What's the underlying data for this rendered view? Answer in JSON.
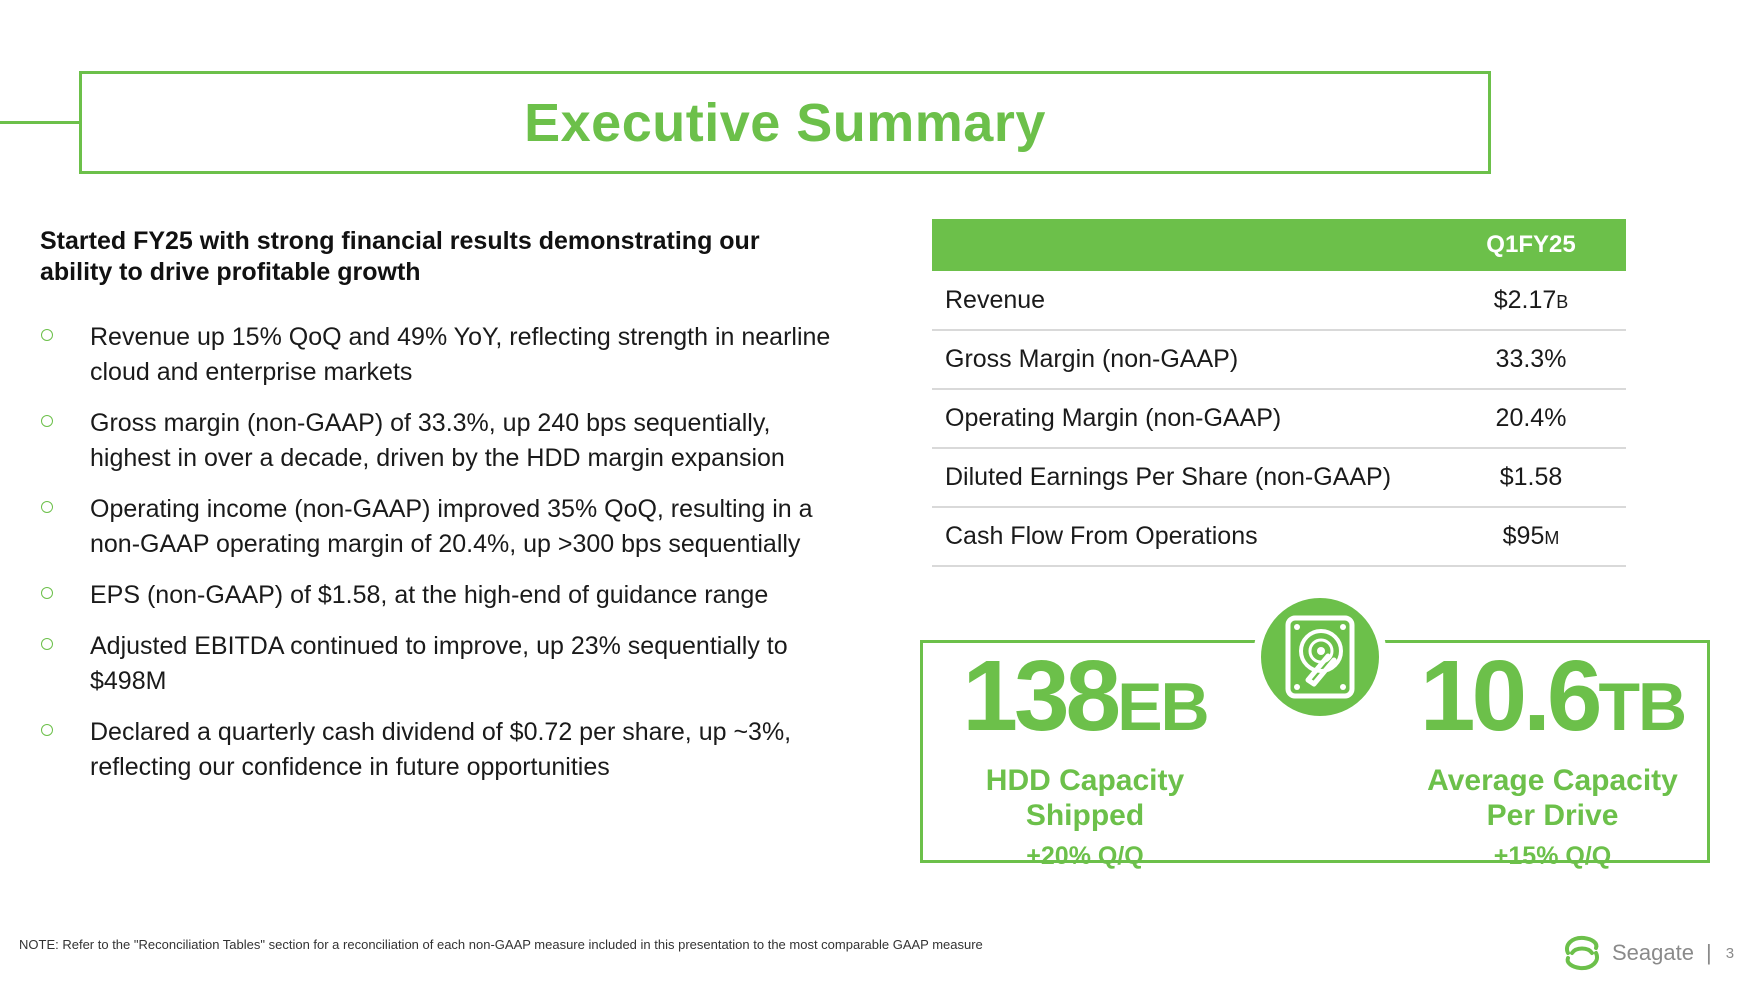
{
  "title": "Executive Summary",
  "lead": "Started FY25 with strong financial results demonstrating our ability to drive profitable growth",
  "bullets": [
    "Revenue up 15% QoQ and 49% YoY, reflecting strength in nearline cloud and enterprise markets",
    "Gross margin (non-GAAP) of 33.3%, up 240 bps sequentially, highest in over a decade, driven by the HDD margin expansion",
    "Operating income (non-GAAP) improved 35% QoQ, resulting in a non-GAAP operating margin of 20.4%, up >300 bps sequentially",
    "EPS (non-GAAP) of $1.58, at the high-end of guidance range",
    "Adjusted EBITDA continued to improve, up 23% sequentially to $498M",
    "Declared a quarterly cash dividend of $0.72 per share, up ~3%, reflecting our confidence in future opportunities"
  ],
  "table": {
    "header": "Q1FY25",
    "rows": [
      {
        "label": "Revenue",
        "value": "$2.17",
        "unit": "B"
      },
      {
        "label": "Gross Margin (non-GAAP)",
        "value": "33.3%",
        "unit": ""
      },
      {
        "label": "Operating Margin (non-GAAP)",
        "value": "20.4%",
        "unit": ""
      },
      {
        "label": "Diluted Earnings Per Share (non-GAAP)",
        "value": "$1.58",
        "unit": ""
      },
      {
        "label": "Cash Flow From Operations",
        "value": "$95",
        "unit": "M"
      }
    ]
  },
  "stats": [
    {
      "value": "138",
      "unit": "EB",
      "label_line1": "HDD Capacity",
      "label_line2": "Shipped",
      "change": "+20% Q/Q"
    },
    {
      "value": "10.6",
      "unit": "TB",
      "label_line1": "Average Capacity",
      "label_line2": "Per Drive",
      "change": "+15% Q/Q"
    }
  ],
  "note": "NOTE: Refer to the \"Reconciliation Tables\" section for a reconciliation of each non-GAAP measure included in this presentation to the most comparable GAAP measure",
  "footer": {
    "brand": "Seagate",
    "separator": "|",
    "page": "3"
  },
  "colors": {
    "accent": "#6cc04a",
    "rule": "#d9d9d9",
    "muted": "#8a8a8a"
  },
  "icons": {
    "badge": "hard-drive-icon",
    "logo": "seagate-logo-icon",
    "bullet": "hollow-circle-bullet-icon"
  }
}
